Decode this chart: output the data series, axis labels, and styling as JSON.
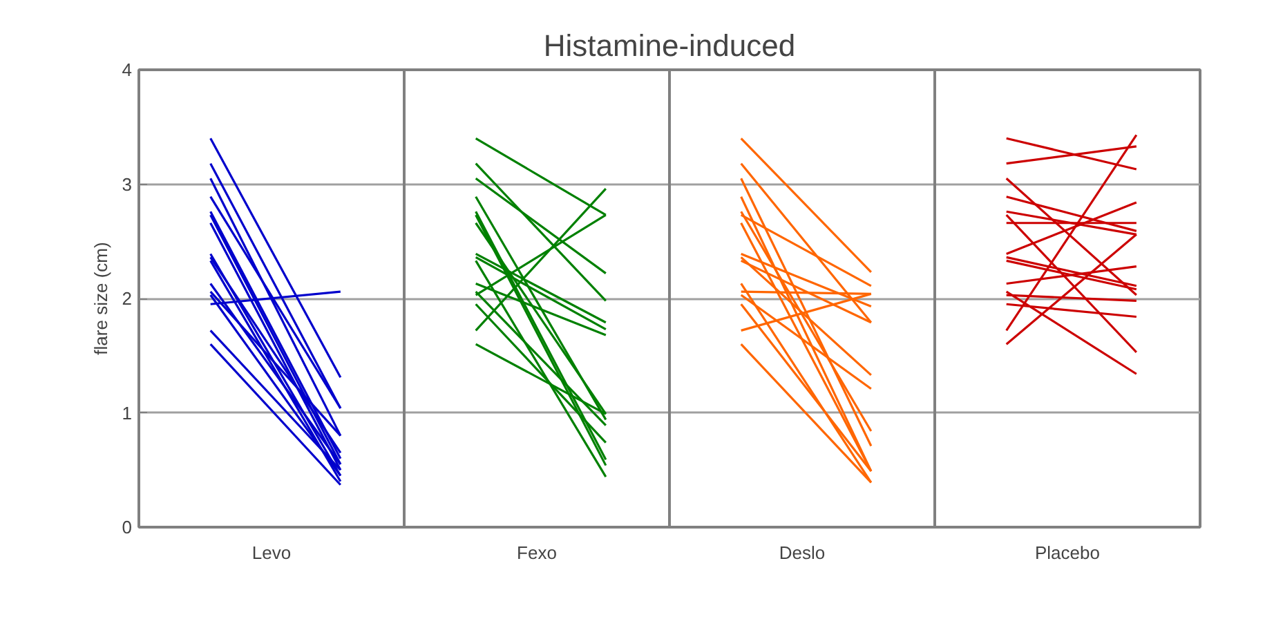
{
  "chart_data": {
    "type": "line",
    "title": "Histamine-induced",
    "ylabel": "flare size (cm)",
    "categories": [
      null,
      null,
      null,
      null,
      null,
      null,
      null,
      null
    ],
    "annotations": [
      "Levo",
      "Fexo",
      "Deslo",
      "Placebo"
    ],
    "ylim": [
      0,
      4
    ],
    "yticks": [
      0,
      1,
      2,
      3,
      4
    ],
    "grid": "y",
    "marker": "none",
    "line_style": "solid",
    "series": [
      {
        "color": "#0000cc",
        "values": [
          3.4,
          1.31,
          null,
          null,
          null,
          null,
          null,
          null
        ]
      },
      {
        "color": "#0000cc",
        "values": [
          3.18,
          1.04,
          null,
          null,
          null,
          null,
          null,
          null
        ]
      },
      {
        "color": "#0000cc",
        "values": [
          3.05,
          0.8,
          null,
          null,
          null,
          null,
          null,
          null
        ]
      },
      {
        "color": "#0000cc",
        "values": [
          2.89,
          1.04,
          null,
          null,
          null,
          null,
          null,
          null
        ]
      },
      {
        "color": "#0000cc",
        "values": [
          2.76,
          0.6,
          null,
          null,
          null,
          null,
          null,
          null
        ]
      },
      {
        "color": "#0000cc",
        "values": [
          2.73,
          0.55,
          null,
          null,
          null,
          null,
          null,
          null
        ]
      },
      {
        "color": "#0000cc",
        "values": [
          2.66,
          0.5,
          null,
          null,
          null,
          null,
          null,
          null
        ]
      },
      {
        "color": "#0000cc",
        "values": [
          2.39,
          0.45,
          null,
          null,
          null,
          null,
          null,
          null
        ]
      },
      {
        "color": "#0000cc",
        "values": [
          2.36,
          0.65,
          null,
          null,
          null,
          null,
          null,
          null
        ]
      },
      {
        "color": "#0000cc",
        "values": [
          2.33,
          0.4,
          null,
          null,
          null,
          null,
          null,
          null
        ]
      },
      {
        "color": "#0000cc",
        "values": [
          2.13,
          0.55,
          null,
          null,
          null,
          null,
          null,
          null
        ]
      },
      {
        "color": "#0000cc",
        "values": [
          2.06,
          0.8,
          null,
          null,
          null,
          null,
          null,
          null
        ]
      },
      {
        "color": "#0000cc",
        "values": [
          2.03,
          0.45,
          null,
          null,
          null,
          null,
          null,
          null
        ]
      },
      {
        "color": "#0000cc",
        "values": [
          1.95,
          2.06,
          null,
          null,
          null,
          null,
          null,
          null
        ]
      },
      {
        "color": "#0000cc",
        "values": [
          1.72,
          0.5,
          null,
          null,
          null,
          null,
          null,
          null
        ]
      },
      {
        "color": "#0000cc",
        "values": [
          1.6,
          0.37,
          null,
          null,
          null,
          null,
          null,
          null
        ]
      },
      {
        "color": "#008000",
        "values": [
          null,
          null,
          3.4,
          2.73,
          null,
          null,
          null,
          null
        ]
      },
      {
        "color": "#008000",
        "values": [
          null,
          null,
          3.18,
          1.98,
          null,
          null,
          null,
          null
        ]
      },
      {
        "color": "#008000",
        "values": [
          null,
          null,
          3.05,
          2.22,
          null,
          null,
          null,
          null
        ]
      },
      {
        "color": "#008000",
        "values": [
          null,
          null,
          2.89,
          0.94,
          null,
          null,
          null,
          null
        ]
      },
      {
        "color": "#008000",
        "values": [
          null,
          null,
          2.76,
          0.59,
          null,
          null,
          null,
          null
        ]
      },
      {
        "color": "#008000",
        "values": [
          null,
          null,
          2.73,
          0.54,
          null,
          null,
          null,
          null
        ]
      },
      {
        "color": "#008000",
        "values": [
          null,
          null,
          2.66,
          0.99,
          null,
          null,
          null,
          null
        ]
      },
      {
        "color": "#008000",
        "values": [
          null,
          null,
          2.39,
          1.79,
          null,
          null,
          null,
          null
        ]
      },
      {
        "color": "#008000",
        "values": [
          null,
          null,
          2.36,
          1.73,
          null,
          null,
          null,
          null
        ]
      },
      {
        "color": "#008000",
        "values": [
          null,
          null,
          2.33,
          0.44,
          null,
          null,
          null,
          null
        ]
      },
      {
        "color": "#008000",
        "values": [
          null,
          null,
          2.13,
          1.68,
          null,
          null,
          null,
          null
        ]
      },
      {
        "color": "#008000",
        "values": [
          null,
          null,
          2.06,
          0.89,
          null,
          null,
          null,
          null
        ]
      },
      {
        "color": "#008000",
        "values": [
          null,
          null,
          2.03,
          2.73,
          null,
          null,
          null,
          null
        ]
      },
      {
        "color": "#008000",
        "values": [
          null,
          null,
          1.95,
          0.74,
          null,
          null,
          null,
          null
        ]
      },
      {
        "color": "#008000",
        "values": [
          null,
          null,
          1.72,
          2.96,
          null,
          null,
          null,
          null
        ]
      },
      {
        "color": "#008000",
        "values": [
          null,
          null,
          1.6,
          0.99,
          null,
          null,
          null,
          null
        ]
      },
      {
        "color": "#ff6600",
        "values": [
          null,
          null,
          null,
          null,
          3.4,
          2.23,
          null,
          null
        ]
      },
      {
        "color": "#ff6600",
        "values": [
          null,
          null,
          null,
          null,
          3.18,
          1.79,
          null,
          null
        ]
      },
      {
        "color": "#ff6600",
        "values": [
          null,
          null,
          null,
          null,
          3.05,
          0.71,
          null,
          null
        ]
      },
      {
        "color": "#ff6600",
        "values": [
          null,
          null,
          null,
          null,
          2.89,
          0.49,
          null,
          null
        ]
      },
      {
        "color": "#ff6600",
        "values": [
          null,
          null,
          null,
          null,
          2.76,
          0.84,
          null,
          null
        ]
      },
      {
        "color": "#ff6600",
        "values": [
          null,
          null,
          null,
          null,
          2.73,
          2.11,
          null,
          null
        ]
      },
      {
        "color": "#ff6600",
        "values": [
          null,
          null,
          null,
          null,
          2.66,
          0.49,
          null,
          null
        ]
      },
      {
        "color": "#ff6600",
        "values": [
          null,
          null,
          null,
          null,
          2.39,
          1.93,
          null,
          null
        ]
      },
      {
        "color": "#ff6600",
        "values": [
          null,
          null,
          null,
          null,
          2.36,
          1.33,
          null,
          null
        ]
      },
      {
        "color": "#ff6600",
        "values": [
          null,
          null,
          null,
          null,
          2.33,
          1.79,
          null,
          null
        ]
      },
      {
        "color": "#ff6600",
        "values": [
          null,
          null,
          null,
          null,
          2.13,
          0.39,
          null,
          null
        ]
      },
      {
        "color": "#ff6600",
        "values": [
          null,
          null,
          null,
          null,
          2.06,
          2.04,
          null,
          null
        ]
      },
      {
        "color": "#ff6600",
        "values": [
          null,
          null,
          null,
          null,
          2.03,
          1.21,
          null,
          null
        ]
      },
      {
        "color": "#ff6600",
        "values": [
          null,
          null,
          null,
          null,
          1.95,
          0.49,
          null,
          null
        ]
      },
      {
        "color": "#ff6600",
        "values": [
          null,
          null,
          null,
          null,
          1.72,
          2.04,
          null,
          null
        ]
      },
      {
        "color": "#ff6600",
        "values": [
          null,
          null,
          null,
          null,
          1.6,
          0.39,
          null,
          null
        ]
      },
      {
        "color": "#cc0000",
        "values": [
          null,
          null,
          null,
          null,
          null,
          null,
          3.4,
          3.13
        ]
      },
      {
        "color": "#cc0000",
        "values": [
          null,
          null,
          null,
          null,
          null,
          null,
          3.18,
          3.33
        ]
      },
      {
        "color": "#cc0000",
        "values": [
          null,
          null,
          null,
          null,
          null,
          null,
          3.05,
          2.03
        ]
      },
      {
        "color": "#cc0000",
        "values": [
          null,
          null,
          null,
          null,
          null,
          null,
          2.89,
          2.59
        ]
      },
      {
        "color": "#cc0000",
        "values": [
          null,
          null,
          null,
          null,
          null,
          null,
          2.76,
          2.56
        ]
      },
      {
        "color": "#cc0000",
        "values": [
          null,
          null,
          null,
          null,
          null,
          null,
          2.73,
          1.53
        ]
      },
      {
        "color": "#cc0000",
        "values": [
          null,
          null,
          null,
          null,
          null,
          null,
          2.66,
          2.66
        ]
      },
      {
        "color": "#cc0000",
        "values": [
          null,
          null,
          null,
          null,
          null,
          null,
          2.39,
          2.84
        ]
      },
      {
        "color": "#cc0000",
        "values": [
          null,
          null,
          null,
          null,
          null,
          null,
          2.36,
          2.11
        ]
      },
      {
        "color": "#cc0000",
        "values": [
          null,
          null,
          null,
          null,
          null,
          null,
          2.33,
          2.08
        ]
      },
      {
        "color": "#cc0000",
        "values": [
          null,
          null,
          null,
          null,
          null,
          null,
          2.13,
          2.28
        ]
      },
      {
        "color": "#cc0000",
        "values": [
          null,
          null,
          null,
          null,
          null,
          null,
          2.06,
          1.34
        ]
      },
      {
        "color": "#cc0000",
        "values": [
          null,
          null,
          null,
          null,
          null,
          null,
          2.03,
          1.98
        ]
      },
      {
        "color": "#cc0000",
        "values": [
          null,
          null,
          null,
          null,
          null,
          null,
          1.95,
          1.84
        ]
      },
      {
        "color": "#cc0000",
        "values": [
          null,
          null,
          null,
          null,
          null,
          null,
          1.72,
          3.43
        ]
      },
      {
        "color": "#cc0000",
        "values": [
          null,
          null,
          null,
          null,
          null,
          null,
          1.6,
          2.56
        ]
      }
    ]
  }
}
